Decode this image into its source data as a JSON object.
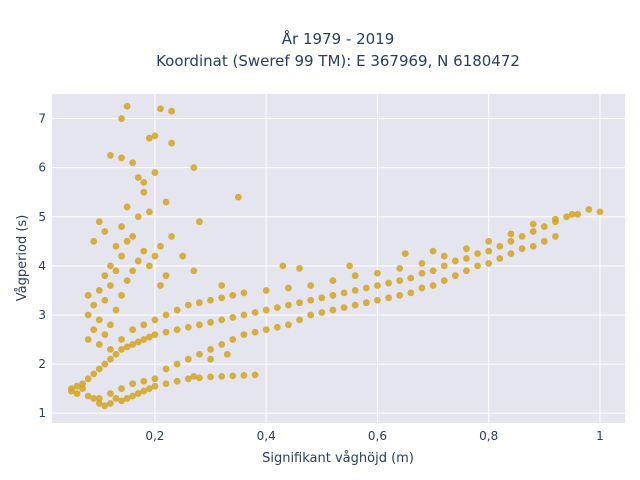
{
  "chart_data": {
    "type": "scatter",
    "title": "År 1979 - 2019",
    "subtitle": "Koordinat (Sweref 99 TM): E 367969, N 6180472",
    "xlabel": "Signifikant våghöjd (m)",
    "ylabel": "Vågperiod (s)",
    "xlim": [
      0.015,
      1.045
    ],
    "ylim": [
      0.8,
      7.5
    ],
    "x_ticks": [
      0.2,
      0.4,
      0.6,
      0.8,
      1.0
    ],
    "x_tick_labels": [
      "0,2",
      "0,4",
      "0,6",
      "0,8",
      "1"
    ],
    "y_ticks": [
      1,
      2,
      3,
      4,
      5,
      6,
      7
    ],
    "y_tick_labels": [
      "1",
      "2",
      "3",
      "4",
      "5",
      "6",
      "7"
    ],
    "grid": true,
    "marker_color": "#D4A520",
    "background_color": "#e5e5ef",
    "points": [
      [
        0.05,
        1.45
      ],
      [
        0.05,
        1.5
      ],
      [
        0.06,
        1.4
      ],
      [
        0.06,
        1.55
      ],
      [
        0.07,
        1.5
      ],
      [
        0.07,
        1.6
      ],
      [
        0.08,
        1.35
      ],
      [
        0.08,
        1.7
      ],
      [
        0.09,
        1.3
      ],
      [
        0.09,
        1.8
      ],
      [
        0.1,
        1.2
      ],
      [
        0.1,
        1.9
      ],
      [
        0.11,
        1.15
      ],
      [
        0.11,
        2.0
      ],
      [
        0.12,
        1.2
      ],
      [
        0.12,
        2.1
      ],
      [
        0.13,
        1.3
      ],
      [
        0.13,
        2.2
      ],
      [
        0.14,
        1.25
      ],
      [
        0.14,
        2.3
      ],
      [
        0.15,
        1.3
      ],
      [
        0.15,
        2.35
      ],
      [
        0.16,
        1.35
      ],
      [
        0.16,
        2.4
      ],
      [
        0.17,
        1.4
      ],
      [
        0.17,
        2.45
      ],
      [
        0.18,
        1.45
      ],
      [
        0.18,
        2.5
      ],
      [
        0.19,
        1.5
      ],
      [
        0.19,
        2.55
      ],
      [
        0.2,
        1.55
      ],
      [
        0.2,
        2.6
      ],
      [
        0.22,
        1.6
      ],
      [
        0.22,
        2.65
      ],
      [
        0.24,
        1.65
      ],
      [
        0.24,
        2.7
      ],
      [
        0.26,
        1.7
      ],
      [
        0.26,
        2.75
      ],
      [
        0.28,
        1.72
      ],
      [
        0.28,
        2.8
      ],
      [
        0.3,
        1.74
      ],
      [
        0.3,
        2.85
      ],
      [
        0.32,
        1.75
      ],
      [
        0.32,
        2.9
      ],
      [
        0.34,
        1.76
      ],
      [
        0.34,
        2.95
      ],
      [
        0.36,
        1.77
      ],
      [
        0.36,
        3.0
      ],
      [
        0.38,
        1.78
      ],
      [
        0.38,
        3.05
      ],
      [
        0.4,
        3.1
      ],
      [
        0.42,
        3.15
      ],
      [
        0.44,
        3.2
      ],
      [
        0.46,
        3.25
      ],
      [
        0.48,
        3.3
      ],
      [
        0.5,
        3.35
      ],
      [
        0.52,
        3.4
      ],
      [
        0.54,
        3.45
      ],
      [
        0.56,
        3.5
      ],
      [
        0.58,
        3.55
      ],
      [
        0.6,
        3.6
      ],
      [
        0.62,
        3.65
      ],
      [
        0.64,
        3.7
      ],
      [
        0.66,
        3.75
      ],
      [
        0.68,
        3.85
      ],
      [
        0.7,
        3.9
      ],
      [
        0.72,
        4.0
      ],
      [
        0.74,
        4.1
      ],
      [
        0.76,
        4.15
      ],
      [
        0.78,
        4.25
      ],
      [
        0.8,
        4.3
      ],
      [
        0.82,
        4.4
      ],
      [
        0.84,
        4.5
      ],
      [
        0.86,
        4.6
      ],
      [
        0.88,
        4.7
      ],
      [
        0.9,
        4.8
      ],
      [
        0.92,
        4.9
      ],
      [
        0.94,
        5.0
      ],
      [
        0.96,
        5.05
      ],
      [
        0.98,
        5.15
      ],
      [
        1.0,
        5.1
      ],
      [
        0.08,
        2.5
      ],
      [
        0.08,
        3.0
      ],
      [
        0.08,
        3.4
      ],
      [
        0.09,
        2.7
      ],
      [
        0.09,
        3.2
      ],
      [
        0.1,
        2.4
      ],
      [
        0.1,
        2.9
      ],
      [
        0.1,
        3.5
      ],
      [
        0.11,
        2.6
      ],
      [
        0.11,
        3.3
      ],
      [
        0.11,
        3.8
      ],
      [
        0.12,
        2.8
      ],
      [
        0.12,
        3.6
      ],
      [
        0.12,
        4.0
      ],
      [
        0.13,
        3.1
      ],
      [
        0.13,
        3.9
      ],
      [
        0.13,
        4.4
      ],
      [
        0.14,
        3.4
      ],
      [
        0.14,
        4.2
      ],
      [
        0.14,
        4.8
      ],
      [
        0.15,
        3.7
      ],
      [
        0.15,
        4.5
      ],
      [
        0.15,
        5.2
      ],
      [
        0.16,
        3.9
      ],
      [
        0.16,
        4.6
      ],
      [
        0.17,
        4.1
      ],
      [
        0.17,
        5.0
      ],
      [
        0.18,
        4.3
      ],
      [
        0.18,
        5.5
      ],
      [
        0.19,
        4.0
      ],
      [
        0.19,
        5.1
      ],
      [
        0.2,
        4.2
      ],
      [
        0.2,
        5.9
      ],
      [
        0.21,
        3.6
      ],
      [
        0.21,
        4.4
      ],
      [
        0.22,
        3.8
      ],
      [
        0.22,
        5.3
      ],
      [
        0.23,
        4.6
      ],
      [
        0.23,
        6.5
      ],
      [
        0.25,
        4.2
      ],
      [
        0.27,
        3.9
      ],
      [
        0.27,
        6.0
      ],
      [
        0.28,
        4.9
      ],
      [
        0.32,
        3.6
      ],
      [
        0.35,
        5.4
      ],
      [
        0.15,
        7.25
      ],
      [
        0.14,
        7.0
      ],
      [
        0.21,
        7.2
      ],
      [
        0.23,
        7.15
      ],
      [
        0.12,
        6.25
      ],
      [
        0.14,
        6.2
      ],
      [
        0.16,
        6.1
      ],
      [
        0.19,
        6.6
      ],
      [
        0.2,
        6.65
      ],
      [
        0.17,
        5.8
      ],
      [
        0.18,
        5.7
      ],
      [
        0.1,
        4.9
      ],
      [
        0.11,
        4.7
      ],
      [
        0.09,
        4.5
      ],
      [
        0.1,
        1.3
      ],
      [
        0.12,
        1.4
      ],
      [
        0.14,
        1.5
      ],
      [
        0.16,
        1.6
      ],
      [
        0.18,
        1.65
      ],
      [
        0.2,
        1.7
      ],
      [
        0.22,
        1.9
      ],
      [
        0.24,
        2.0
      ],
      [
        0.26,
        2.1
      ],
      [
        0.28,
        2.2
      ],
      [
        0.3,
        2.3
      ],
      [
        0.32,
        2.4
      ],
      [
        0.34,
        2.5
      ],
      [
        0.36,
        2.6
      ],
      [
        0.38,
        2.65
      ],
      [
        0.4,
        2.7
      ],
      [
        0.42,
        2.75
      ],
      [
        0.44,
        2.8
      ],
      [
        0.46,
        2.9
      ],
      [
        0.48,
        3.0
      ],
      [
        0.5,
        3.05
      ],
      [
        0.52,
        3.1
      ],
      [
        0.54,
        3.15
      ],
      [
        0.56,
        3.2
      ],
      [
        0.58,
        3.25
      ],
      [
        0.6,
        3.3
      ],
      [
        0.62,
        3.35
      ],
      [
        0.64,
        3.4
      ],
      [
        0.66,
        3.45
      ],
      [
        0.68,
        3.55
      ],
      [
        0.7,
        3.6
      ],
      [
        0.72,
        3.7
      ],
      [
        0.74,
        3.8
      ],
      [
        0.76,
        3.9
      ],
      [
        0.78,
        4.0
      ],
      [
        0.8,
        4.05
      ],
      [
        0.82,
        4.15
      ],
      [
        0.84,
        4.25
      ],
      [
        0.86,
        4.35
      ],
      [
        0.88,
        4.4
      ],
      [
        0.9,
        4.5
      ],
      [
        0.92,
        4.6
      ],
      [
        0.12,
        2.3
      ],
      [
        0.14,
        2.5
      ],
      [
        0.16,
        2.7
      ],
      [
        0.18,
        2.8
      ],
      [
        0.2,
        2.9
      ],
      [
        0.22,
        3.0
      ],
      [
        0.24,
        3.1
      ],
      [
        0.26,
        3.2
      ],
      [
        0.28,
        3.25
      ],
      [
        0.3,
        3.3
      ],
      [
        0.32,
        3.35
      ],
      [
        0.34,
        3.4
      ],
      [
        0.36,
        3.45
      ],
      [
        0.4,
        3.5
      ],
      [
        0.44,
        3.55
      ],
      [
        0.48,
        3.6
      ],
      [
        0.52,
        3.7
      ],
      [
        0.56,
        3.8
      ],
      [
        0.6,
        3.85
      ],
      [
        0.64,
        3.95
      ],
      [
        0.68,
        4.05
      ],
      [
        0.72,
        4.2
      ],
      [
        0.76,
        4.35
      ],
      [
        0.8,
        4.5
      ],
      [
        0.84,
        4.65
      ],
      [
        0.88,
        4.85
      ],
      [
        0.92,
        4.95
      ],
      [
        0.95,
        5.05
      ],
      [
        0.43,
        4.0
      ],
      [
        0.46,
        3.95
      ],
      [
        0.55,
        4.0
      ],
      [
        0.65,
        4.25
      ],
      [
        0.7,
        4.3
      ],
      [
        0.3,
        2.1
      ],
      [
        0.33,
        2.2
      ],
      [
        0.27,
        1.75
      ]
    ]
  }
}
